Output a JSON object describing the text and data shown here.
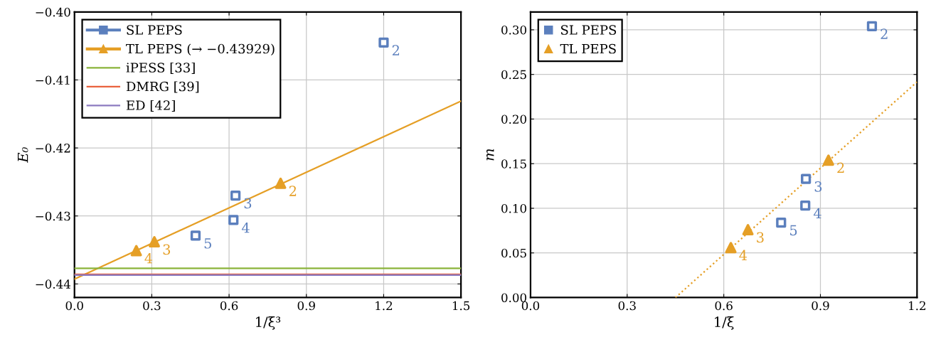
{
  "chart_data": [
    {
      "type": "scatter",
      "xlabel": "1/ξ³",
      "ylabel": "E₀",
      "xlim": [
        0,
        1.5
      ],
      "ylim": [
        -0.442,
        -0.4
      ],
      "xticks": [
        {
          "value": 0,
          "label": "0.0"
        },
        {
          "value": 0.3,
          "label": "0.3"
        },
        {
          "value": 0.6,
          "label": "0.6"
        },
        {
          "value": 0.9,
          "label": "0.9"
        },
        {
          "value": 1.2,
          "label": "1.2"
        },
        {
          "value": 1.5,
          "label": "1.5"
        }
      ],
      "yticks": [
        {
          "value": -0.44,
          "label": "−0.44"
        },
        {
          "value": -0.43,
          "label": "−0.43"
        },
        {
          "value": -0.42,
          "label": "−0.42"
        },
        {
          "value": -0.41,
          "label": "−0.41"
        },
        {
          "value": -0.4,
          "label": "−0.40"
        }
      ],
      "grid": true,
      "legend": "top left",
      "series": [
        {
          "name": "SL PEPS",
          "color": "#5b7fbd",
          "marker": "square",
          "x": [
            1.2,
            0.625,
            0.617,
            0.47
          ],
          "values": [
            -0.4045,
            -0.427,
            -0.4306,
            -0.4329
          ]
        },
        {
          "name": "TL PEPS (→ −0.43929)",
          "color": "#e59f26",
          "marker": "triangle",
          "x": [
            0.8,
            0.31,
            0.24
          ],
          "values": [
            -0.4252,
            -0.4338,
            -0.4351
          ]
        },
        {
          "type": "line",
          "color": "#e59f26",
          "x": [
            0,
            1.5
          ],
          "values": [
            -0.43929,
            -0.4131
          ]
        }
      ],
      "ref_lines": [
        {
          "axis": "y",
          "value": -0.4377,
          "label": "iPESS [33]",
          "color": "#8ab33a"
        },
        {
          "axis": "y",
          "value": -0.4386,
          "label": "DMRG [39]",
          "color": "#e9623d"
        },
        {
          "axis": "y",
          "value": -0.4387,
          "label": "ED [42]",
          "color": "#8c7bc0"
        }
      ],
      "annotations": [
        {
          "text": "2",
          "x": 1.2,
          "y": -0.4045
        },
        {
          "text": "3",
          "x": 0.625,
          "y": -0.427
        },
        {
          "text": "4",
          "x": 0.617,
          "y": -0.4306
        },
        {
          "text": "5",
          "x": 0.47,
          "y": -0.4329
        },
        {
          "text": "2",
          "x": 0.8,
          "y": -0.4252
        },
        {
          "text": "3",
          "x": 0.31,
          "y": -0.4338
        },
        {
          "text": "4",
          "x": 0.24,
          "y": -0.4351
        }
      ]
    },
    {
      "type": "scatter",
      "xlabel": "1/ξ",
      "ylabel": "m",
      "xlim": [
        0,
        1.2
      ],
      "ylim": [
        0,
        0.32
      ],
      "xticks": [
        {
          "value": 0,
          "label": "0.0"
        },
        {
          "value": 0.3,
          "label": "0.3"
        },
        {
          "value": 0.6,
          "label": "0.6"
        },
        {
          "value": 0.9,
          "label": "0.9"
        },
        {
          "value": 1.2,
          "label": "1.2"
        }
      ],
      "yticks": [
        {
          "value": 0,
          "label": "0.00"
        },
        {
          "value": 0.05,
          "label": "0.05"
        },
        {
          "value": 0.1,
          "label": "0.10"
        },
        {
          "value": 0.15,
          "label": "0.15"
        },
        {
          "value": 0.2,
          "label": "0.20"
        },
        {
          "value": 0.25,
          "label": "0.25"
        },
        {
          "value": 0.3,
          "label": "0.30"
        }
      ],
      "grid": true,
      "legend": "top left",
      "series": [
        {
          "name": "SL PEPS",
          "color": "#5b7fbd",
          "marker": "square",
          "x": [
            1.06,
            0.855,
            0.853,
            0.778
          ],
          "values": [
            0.304,
            0.133,
            0.103,
            0.084
          ]
        },
        {
          "name": "TL PEPS",
          "color": "#e59f26",
          "marker": "triangle",
          "x": [
            0.925,
            0.675,
            0.622
          ],
          "values": [
            0.154,
            0.076,
            0.056
          ]
        },
        {
          "type": "line",
          "color": "#e59f26",
          "line_style": "dotted",
          "x": [
            0.45,
            1.2
          ],
          "values": [
            0,
            0.2416
          ]
        }
      ],
      "annotations": [
        {
          "text": "2",
          "x": 1.06,
          "y": 0.304
        },
        {
          "text": "3",
          "x": 0.855,
          "y": 0.133
        },
        {
          "text": "4",
          "x": 0.853,
          "y": 0.103
        },
        {
          "text": "5",
          "x": 0.778,
          "y": 0.084
        },
        {
          "text": "2",
          "x": 0.925,
          "y": 0.154
        },
        {
          "text": "3",
          "x": 0.675,
          "y": 0.076
        },
        {
          "text": "4",
          "x": 0.622,
          "y": 0.056
        }
      ]
    }
  ]
}
